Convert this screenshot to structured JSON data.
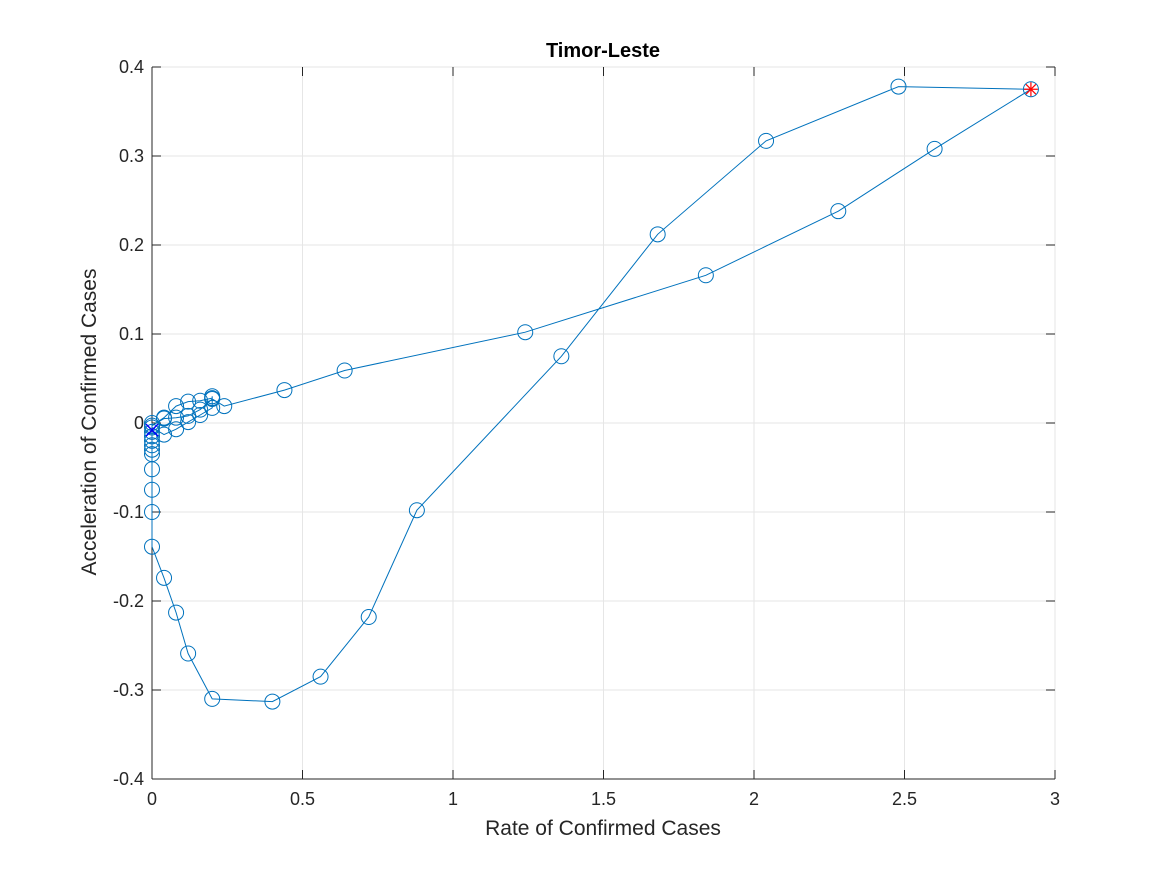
{
  "chart_data": {
    "type": "line",
    "title": "Timor-Leste",
    "xlabel": "Rate of Confirmed Cases",
    "ylabel": "Acceleration of Confirmed Cases",
    "xlim": [
      0,
      3
    ],
    "ylim": [
      -0.4,
      0.4
    ],
    "xticks": [
      0,
      0.5,
      1,
      1.5,
      2,
      2.5,
      3
    ],
    "xtick_labels": [
      "0",
      "0.5",
      "1",
      "1.5",
      "2",
      "2.5",
      "3"
    ],
    "yticks": [
      -0.4,
      -0.3,
      -0.2,
      -0.1,
      0,
      0.1,
      0.2,
      0.3,
      0.4
    ],
    "ytick_labels": [
      "-0.4",
      "-0.3",
      "-0.2",
      "-0.1",
      "0",
      "0.1",
      "0.2",
      "0.3",
      "0.4"
    ],
    "grid": true,
    "colors": {
      "series": "#0072BD",
      "start_marker": "#FF0000",
      "end_marker": "#0000FF",
      "grid": "#E6E6E6",
      "axis": "#262626"
    },
    "series": [
      {
        "marker": "circle",
        "points": [
          [
            0,
            0
          ],
          [
            0,
            -0.005
          ],
          [
            0.04,
            -0.013
          ],
          [
            0.08,
            -0.007
          ],
          [
            0.12,
            0.001
          ],
          [
            0.16,
            0.009
          ],
          [
            0.2,
            0.017
          ],
          [
            0.2,
            0.03
          ],
          [
            0.2,
            0.028
          ],
          [
            0.16,
            0.025
          ],
          [
            0.12,
            0.024
          ],
          [
            0.08,
            0.019
          ],
          [
            0.04,
            0.006
          ],
          [
            0,
            -0.003
          ],
          [
            0.04,
            0.005
          ],
          [
            0.08,
            0.006
          ],
          [
            0.12,
            0.008
          ],
          [
            0.16,
            0.015
          ],
          [
            0.2,
            0.027
          ],
          [
            0.24,
            0.019
          ],
          [
            0.44,
            0.037
          ],
          [
            0.64,
            0.059
          ],
          [
            1.24,
            0.102
          ],
          [
            1.84,
            0.166
          ],
          [
            2.28,
            0.238
          ],
          [
            2.6,
            0.308
          ],
          [
            2.92,
            0.375
          ],
          [
            2.48,
            0.378
          ],
          [
            2.04,
            0.317
          ],
          [
            1.68,
            0.212
          ],
          [
            1.36,
            0.075
          ],
          [
            0.88,
            -0.098
          ],
          [
            0.72,
            -0.218
          ],
          [
            0.56,
            -0.285
          ],
          [
            0.4,
            -0.313
          ],
          [
            0.2,
            -0.31
          ],
          [
            0.12,
            -0.259
          ],
          [
            0.08,
            -0.213
          ],
          [
            0.04,
            -0.174
          ],
          [
            0,
            -0.139
          ],
          [
            0,
            -0.1
          ],
          [
            0,
            -0.075
          ],
          [
            0,
            -0.052
          ],
          [
            0,
            -0.035
          ],
          [
            0,
            -0.03
          ],
          [
            0,
            -0.025
          ],
          [
            0,
            -0.02
          ],
          [
            0,
            -0.015
          ],
          [
            0,
            -0.01
          ]
        ]
      }
    ],
    "start_point": {
      "marker": "asterisk",
      "point": [
        2.92,
        0.375
      ]
    },
    "end_point": {
      "marker": "cross",
      "point": [
        0,
        -0.008
      ]
    }
  }
}
